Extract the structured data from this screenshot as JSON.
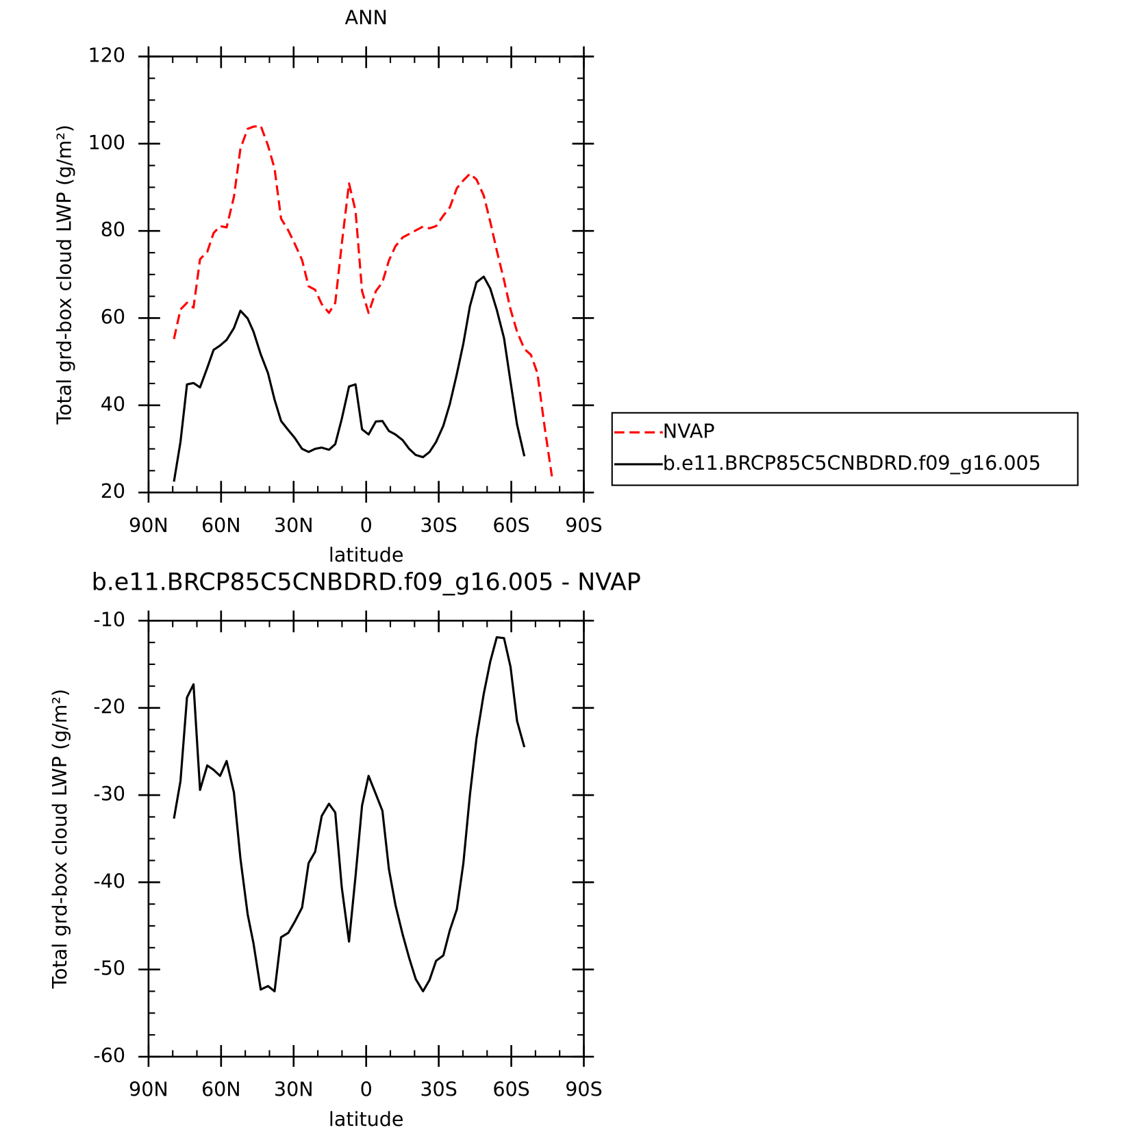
{
  "chart_data": [
    {
      "type": "line",
      "title": "ANN",
      "xlabel": "latitude",
      "ylabel": "Total grd-box cloud LWP (g/m²)",
      "x": [
        79.5,
        76.8,
        74.1,
        71.4,
        68.7,
        65.7,
        63.1,
        60.4,
        57.7,
        54.7,
        52.0,
        49.0,
        46.6,
        43.6,
        40.6,
        37.9,
        35.2,
        32.2,
        29.5,
        26.5,
        23.8,
        21.1,
        18.4,
        15.4,
        12.8,
        10.1,
        7.1,
        4.4,
        1.7,
        -1.0,
        -4.0,
        -6.7,
        -9.4,
        -12.1,
        -15.1,
        -17.8,
        -20.5,
        -23.5,
        -26.2,
        -28.9,
        -31.9,
        -34.6,
        -37.5,
        -40.2,
        -42.9,
        -45.6,
        -48.6,
        -51.3,
        -54.0,
        -57.0,
        -59.7,
        -62.4,
        -65.4,
        -68.1,
        -70.8,
        -73.8,
        -76.8
      ],
      "xlim": [
        90,
        -90
      ],
      "xticks": [
        {
          "value": 90,
          "label": "90N"
        },
        {
          "value": 60,
          "label": "60N"
        },
        {
          "value": 30,
          "label": "30N"
        },
        0,
        {
          "value": -30,
          "label": "30S"
        },
        {
          "value": -60,
          "label": "60S"
        },
        {
          "value": -90,
          "label": "90S"
        }
      ],
      "ylim": [
        20,
        120
      ],
      "yticks": [
        20,
        40,
        60,
        80,
        100,
        120
      ],
      "legend": "right",
      "series": [
        {
          "name": "NVAP",
          "color": "#ff0000",
          "linestyle": "dashed",
          "values": [
            55.2,
            62.0,
            63.5,
            62.4,
            73.5,
            75.2,
            79.5,
            81.1,
            80.8,
            87.8,
            98.9,
            103.4,
            103.9,
            104.1,
            99.6,
            94.3,
            82.8,
            80.1,
            77.0,
            73.3,
            67.3,
            66.5,
            63.2,
            61.2,
            63.5,
            77.0,
            90.9,
            84.6,
            66.2,
            61.2,
            66.2,
            68.2,
            73.2,
            76.5,
            78.5,
            79.3,
            80.1,
            81.0,
            80.6,
            81.1,
            83.5,
            85.4,
            89.8,
            91.6,
            93.1,
            91.8,
            88.1,
            82.1,
            75.5,
            68.7,
            62.0,
            56.9,
            52.9,
            51.6,
            47.4,
            35.0,
            23.7
          ]
        },
        {
          "name": "b.e11.BRCP85C5CNBDRD.f09_g16.005",
          "color": "#000000",
          "linestyle": "solid",
          "values": [
            22.5,
            31.6,
            44.8,
            45.1,
            44.1,
            48.6,
            52.7,
            53.7,
            55.0,
            57.7,
            61.7,
            59.9,
            56.9,
            51.7,
            47.4,
            41.3,
            36.4,
            34.3,
            32.5,
            30.0,
            29.3,
            30.0,
            30.3,
            29.8,
            31.1,
            36.9,
            44.3,
            44.8,
            34.5,
            33.3,
            36.3,
            36.4,
            34.1,
            33.3,
            32.0,
            30.0,
            28.6,
            28.1,
            29.3,
            31.6,
            35.3,
            40.3,
            47.2,
            54.2,
            62.7,
            68.2,
            69.5,
            66.8,
            61.9,
            55.4,
            45.4,
            35.6,
            28.3,
            null,
            null,
            null,
            null
          ]
        }
      ]
    },
    {
      "type": "line",
      "title": "b.e11.BRCP85C5CNBDRD.f09_g16.005 - NVAP",
      "xlabel": "latitude",
      "ylabel": "Total grd-box cloud LWP (g/m²)",
      "x": [
        79.5,
        76.8,
        74.1,
        71.4,
        68.7,
        65.7,
        63.1,
        60.4,
        57.7,
        54.7,
        52.0,
        49.0,
        46.6,
        43.6,
        40.6,
        37.9,
        35.2,
        32.2,
        29.5,
        26.5,
        23.8,
        21.1,
        18.4,
        15.4,
        12.8,
        10.1,
        7.1,
        4.4,
        1.7,
        -1.0,
        -4.0,
        -6.7,
        -9.4,
        -12.1,
        -15.1,
        -17.8,
        -20.5,
        -23.5,
        -26.2,
        -28.9,
        -31.9,
        -34.6,
        -37.5,
        -40.2,
        -42.9,
        -45.6,
        -48.6,
        -51.3,
        -54.0,
        -57.0,
        -59.7,
        -62.4,
        -65.4
      ],
      "xlim": [
        90,
        -90
      ],
      "xticks": [
        {
          "value": 90,
          "label": "90N"
        },
        {
          "value": 60,
          "label": "60N"
        },
        {
          "value": 30,
          "label": "30N"
        },
        0,
        {
          "value": -30,
          "label": "30S"
        },
        {
          "value": -60,
          "label": "60S"
        },
        {
          "value": -90,
          "label": "90S"
        }
      ],
      "ylim": [
        -60,
        -10
      ],
      "yticks": [
        -60,
        -50,
        -40,
        -30,
        -20,
        -10
      ],
      "series": [
        {
          "color": "#000000",
          "linestyle": "solid",
          "values": [
            -32.7,
            -28.4,
            -18.8,
            -17.3,
            -29.4,
            -26.6,
            -27.1,
            -27.8,
            -26.1,
            -29.7,
            -37.3,
            -43.7,
            -47.0,
            -52.3,
            -51.9,
            -52.5,
            -46.3,
            -45.8,
            -44.5,
            -42.9,
            -37.8,
            -36.5,
            -32.4,
            -31.0,
            -32.0,
            -40.6,
            -46.8,
            -39.3,
            -31.2,
            -27.8,
            -29.9,
            -31.8,
            -38.5,
            -42.6,
            -46.0,
            -48.7,
            -51.1,
            -52.5,
            -51.2,
            -49.0,
            -48.4,
            -45.5,
            -43.1,
            -37.8,
            -30.0,
            -23.5,
            -18.4,
            -14.7,
            -11.9,
            -12.0,
            -15.3,
            -21.5,
            -24.5
          ]
        }
      ]
    }
  ]
}
